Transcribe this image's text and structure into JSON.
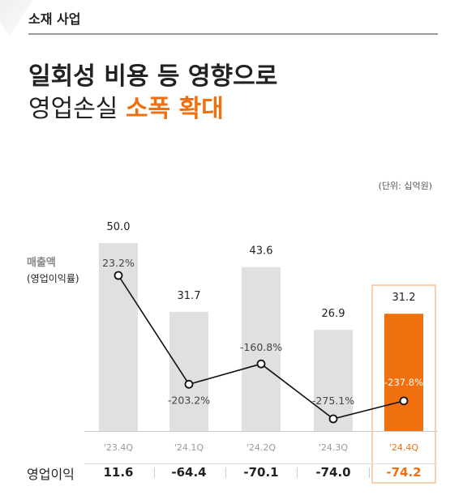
{
  "header": {
    "section_label": "소재 사업",
    "title_line1": "일회성 비용 등 영향으로",
    "title_line2_plain": "영업손실",
    "title_line2_highlight": "소폭 확대"
  },
  "unit_text": "(단위: 십억원)",
  "legend": {
    "revenue": "매출액",
    "margin": "(영업이익률)"
  },
  "op_income_label": "영업이익",
  "colors": {
    "accent": "#f07010",
    "bar": "#e0e0e0",
    "rule": "#9a9a9a"
  },
  "chart_data": {
    "type": "bar",
    "categories": [
      "'23.4Q",
      "'24.1Q",
      "'24.2Q",
      "'24.3Q",
      "'24.4Q"
    ],
    "series": [
      {
        "name": "매출액",
        "values": [
          50.0,
          31.7,
          43.6,
          26.9,
          31.2
        ]
      },
      {
        "name": "영업이익률",
        "values": [
          23.2,
          -203.2,
          -160.8,
          -275.1,
          -237.8
        ],
        "unit": "%"
      },
      {
        "name": "영업이익",
        "values": [
          11.6,
          -64.4,
          -70.1,
          -74.0,
          -74.2
        ]
      }
    ],
    "revenue_labels": [
      "50.0",
      "31.7",
      "43.6",
      "26.9",
      "31.2"
    ],
    "margin_labels": [
      "23.2%",
      "-203.2%",
      "-160.8%",
      "-275.1%",
      "-237.8%"
    ],
    "op_income_labels": [
      "11.6",
      "-64.4",
      "-70.1",
      "-74.0",
      "-74.2"
    ],
    "highlight_index": 4,
    "grid": false
  }
}
